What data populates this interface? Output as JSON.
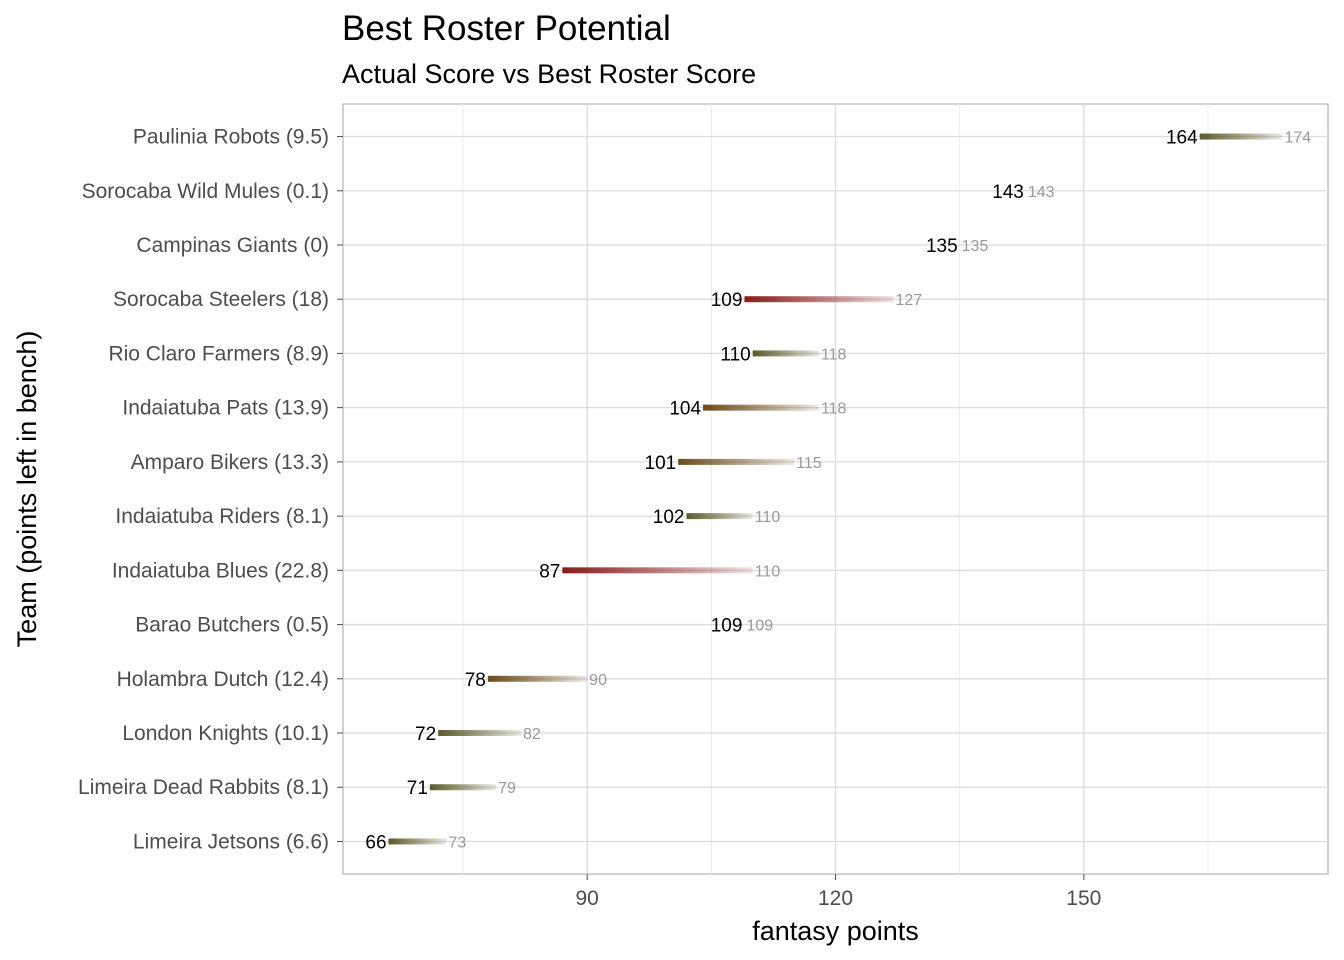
{
  "chart_data": {
    "type": "dumbbell",
    "title": "Best Roster Potential",
    "subtitle": "Actual Score vs Best Roster Score",
    "xlabel": "fantasy points",
    "ylabel": "Team (points left in bench)",
    "xlim": [
      60.5,
      179.5
    ],
    "xticks": [
      90,
      120,
      150
    ],
    "grid": true,
    "series": [
      "actual",
      "best"
    ],
    "colors": {
      "low_bench": "#5b5b2a",
      "mid_bench": "#6b4a1a",
      "high_bench": "#8b1a1a"
    },
    "categories": [
      "Paulinia Robots (9.5)",
      "Sorocaba Wild Mules (0.1)",
      "Campinas Giants (0)",
      "Sorocaba Steelers (18)",
      "Rio Claro Farmers (8.9)",
      "Indaiatuba Pats (13.9)",
      "Amparo Bikers (13.3)",
      "Indaiatuba Riders (8.1)",
      "Indaiatuba Blues (22.8)",
      "Barao Butchers (0.5)",
      "Holambra Dutch (12.4)",
      "London Knights (10.1)",
      "Limeira Dead Rabbits (8.1)",
      "Limeira Jetsons (6.6)"
    ],
    "actual": [
      164,
      143,
      135,
      109,
      110,
      104,
      101,
      102,
      87,
      109,
      78,
      72,
      71,
      66
    ],
    "best": [
      174,
      143,
      135,
      127,
      118,
      118,
      115,
      110,
      110,
      109,
      90,
      82,
      79,
      73
    ],
    "bench": [
      9.5,
      0.1,
      0,
      18,
      8.9,
      13.9,
      13.3,
      8.1,
      22.8,
      0.5,
      12.4,
      10.1,
      8.1,
      6.6
    ]
  }
}
